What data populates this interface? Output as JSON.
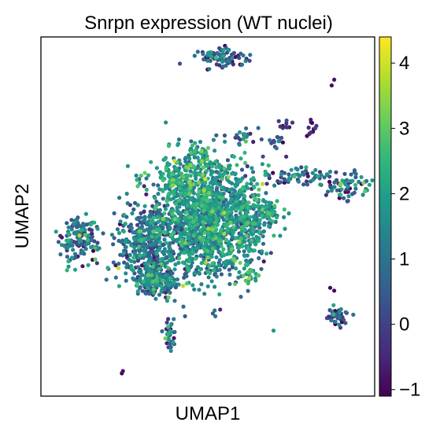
{
  "chart_data": {
    "type": "scatter",
    "title": "Snrpn expression (WT nuclei)",
    "xlabel": "UMAP1",
    "ylabel": "UMAP2",
    "xticks": [],
    "yticks": [],
    "grid": false,
    "colormap": "viridis",
    "colorbar": {
      "range": [
        -1.1,
        4.4
      ],
      "ticks": [
        -1,
        0,
        1,
        2,
        3,
        4
      ],
      "tick_labels": [
        "−1",
        "0",
        "1",
        "2",
        "3",
        "4"
      ]
    },
    "clusters": [
      {
        "x": 0.0,
        "y": 0.0,
        "sx": 0.55,
        "sy": 0.5,
        "n": 900,
        "mean": 1.6,
        "sd": 0.7
      },
      {
        "x": -0.15,
        "y": -0.45,
        "sx": 0.55,
        "sy": 0.45,
        "n": 500,
        "mean": 1.2,
        "sd": 0.9
      },
      {
        "x": -1.2,
        "y": -0.65,
        "sx": 0.3,
        "sy": 0.35,
        "n": 350,
        "mean": 0.6,
        "sd": 0.9
      },
      {
        "x": -1.0,
        "y": -1.3,
        "sx": 0.22,
        "sy": 0.15,
        "n": 180,
        "mean": 1.0,
        "sd": 1.0
      },
      {
        "x": -2.55,
        "y": -0.55,
        "sx": 0.2,
        "sy": 0.18,
        "n": 140,
        "mean": 0.8,
        "sd": 1.0
      },
      {
        "x": -0.55,
        "y": 0.55,
        "sx": 0.25,
        "sy": 0.18,
        "n": 110,
        "mean": 1.8,
        "sd": 0.8
      },
      {
        "x": 0.85,
        "y": -0.35,
        "sx": 0.15,
        "sy": 0.35,
        "n": 120,
        "mean": 1.5,
        "sd": 0.8
      },
      {
        "x": 1.2,
        "y": -0.05,
        "sx": 0.12,
        "sy": 0.1,
        "n": 60,
        "mean": 1.7,
        "sd": 0.7
      },
      {
        "x": 0.35,
        "y": 2.65,
        "sx": 0.25,
        "sy": 0.08,
        "n": 90,
        "mean": 0.0,
        "sd": 1.0
      },
      {
        "x": 0.7,
        "y": 1.25,
        "sx": 0.2,
        "sy": 0.05,
        "n": 20,
        "mean": 0.5,
        "sd": 0.8
      },
      {
        "x": 2.0,
        "y": 0.55,
        "sx": 0.5,
        "sy": 0.08,
        "n": 70,
        "mean": 0.6,
        "sd": 1.0
      },
      {
        "x": 2.75,
        "y": 0.35,
        "sx": 0.25,
        "sy": 0.1,
        "n": 60,
        "mean": 0.5,
        "sd": 1.4
      },
      {
        "x": 2.55,
        "y": -1.9,
        "sx": 0.1,
        "sy": 0.08,
        "n": 50,
        "mean": -0.2,
        "sd": 0.9
      },
      {
        "x": -0.75,
        "y": -2.2,
        "sx": 0.05,
        "sy": 0.15,
        "n": 35,
        "mean": 0.8,
        "sd": 0.9
      },
      {
        "x": -0.15,
        "y": 0.95,
        "sx": 0.1,
        "sy": 0.15,
        "n": 30,
        "mean": 2.0,
        "sd": 0.8
      },
      {
        "x": 0.8,
        "y": -1.15,
        "sx": 0.1,
        "sy": 0.1,
        "n": 18,
        "mean": 2.0,
        "sd": 0.8
      },
      {
        "x": 2.05,
        "y": 1.4,
        "sx": 0.04,
        "sy": 0.08,
        "n": 12,
        "mean": -0.5,
        "sd": 0.5
      },
      {
        "x": 1.35,
        "y": 1.15,
        "sx": 0.08,
        "sy": 0.08,
        "n": 12,
        "mean": 0.2,
        "sd": 0.8
      },
      {
        "x": 1.55,
        "y": 1.45,
        "sx": 0.08,
        "sy": 0.06,
        "n": 10,
        "mean": -0.5,
        "sd": 0.5
      }
    ],
    "points": [
      {
        "x": -1.75,
        "y": 0.18,
        "v": 1.0
      },
      {
        "x": -1.6,
        "y": 0.25,
        "v": 1.5
      },
      {
        "x": 1.55,
        "y": 0.9,
        "v": -0.5
      },
      {
        "x": 0.1,
        "y": -1.85,
        "v": 0.5
      },
      {
        "x": 0.15,
        "y": -1.9,
        "v": 1.0
      },
      {
        "x": 2.5,
        "y": -1.45,
        "v": -1.0
      },
      {
        "x": 2.42,
        "y": -1.4,
        "v": -1.0
      },
      {
        "x": 1.3,
        "y": -2.15,
        "v": 1.8
      },
      {
        "x": -1.7,
        "y": -2.9,
        "v": -1.0
      },
      {
        "x": -1.68,
        "y": -2.86,
        "v": -0.8
      },
      {
        "x": -0.45,
        "y": -1.9,
        "v": 0.5
      },
      {
        "x": 2.45,
        "y": 2.15,
        "v": -1.0
      },
      {
        "x": 2.5,
        "y": 2.25,
        "v": -0.8
      }
    ]
  }
}
